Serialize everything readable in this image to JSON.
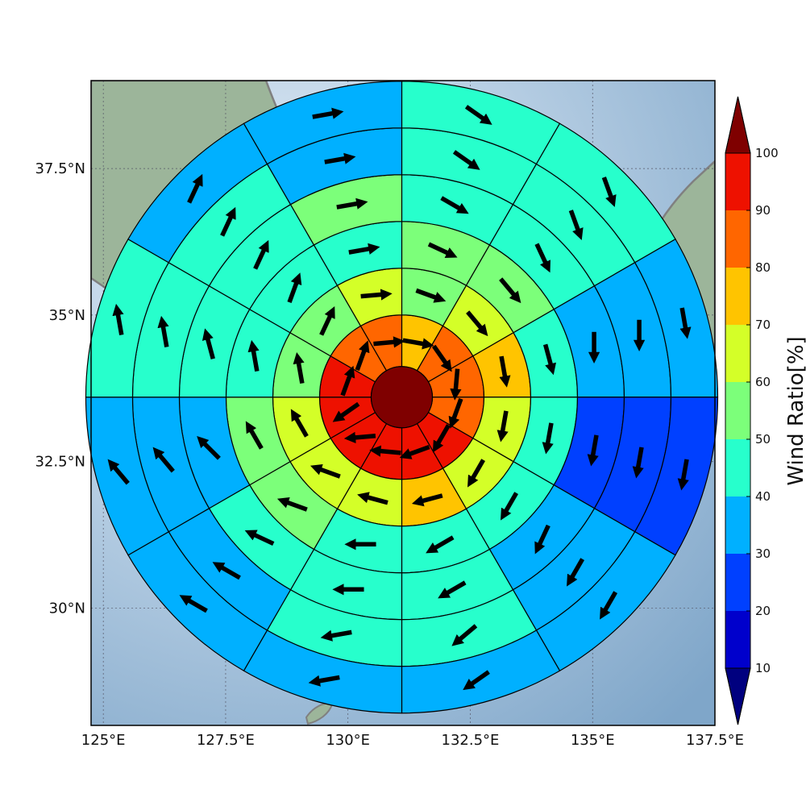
{
  "map": {
    "lon_range": [
      124.75,
      137.5
    ],
    "lat_range": [
      28.0,
      39.0
    ],
    "lon_ticks": [
      {
        "value": 125.0,
        "label": "125°E"
      },
      {
        "value": 127.5,
        "label": "127.5°E"
      },
      {
        "value": 130.0,
        "label": "130°E"
      },
      {
        "value": 132.5,
        "label": "132.5°E"
      },
      {
        "value": 135.0,
        "label": "135°E"
      },
      {
        "value": 137.5,
        "label": "137.5°E"
      }
    ],
    "lat_ticks": [
      {
        "value": 30.0,
        "label": "30°N"
      },
      {
        "value": 32.5,
        "label": "32.5°N"
      },
      {
        "value": 35.0,
        "label": "35°N"
      },
      {
        "value": 37.5,
        "label": "37.5°N"
      }
    ],
    "gridlines": true,
    "colors": {
      "sea": "#9fc0dc",
      "land": "#9cb59a",
      "coastline": "#808080"
    }
  },
  "colorbar": {
    "title": "Wind Ratio[%]",
    "boundaries": [
      10,
      20,
      30,
      40,
      50,
      60,
      70,
      80,
      90,
      100
    ],
    "colors": [
      "#0000cc",
      "#0040ff",
      "#00b0ff",
      "#27ffcc",
      "#7cff7a",
      "#d4ff28",
      "#ffc400",
      "#ff6600",
      "#ee1100"
    ],
    "under_color": "#00007f",
    "over_color": "#7f0000",
    "extend": "both"
  },
  "chart_data": {
    "type": "polar-sector-map",
    "center": {
      "lon": 131.1,
      "lat": 33.6
    },
    "ring_count": 6,
    "sectors_per_ring": 12,
    "center_value": 100,
    "rings": [
      {
        "values": [
          72,
          83,
          85,
          87,
          92,
          94,
          96,
          95,
          94,
          92,
          85,
          84
        ],
        "wind_dir_deg": [
          100,
          145,
          185,
          200,
          210,
          250,
          275,
          265,
          235,
          20,
          20,
          85
        ]
      },
      {
        "values": [
          58,
          65,
          72,
          60,
          63,
          72,
          64,
          60,
          68,
          58,
          58,
          64
        ],
        "wind_dir_deg": [
          110,
          140,
          170,
          190,
          210,
          255,
          285,
          290,
          330,
          350,
          25,
          85
        ]
      },
      {
        "values": [
          55,
          52,
          48,
          45,
          42,
          45,
          47,
          50,
          52,
          48,
          45,
          47
        ],
        "wind_dir_deg": [
          115,
          140,
          165,
          190,
          210,
          240,
          270,
          290,
          330,
          350,
          20,
          80
        ]
      },
      {
        "values": [
          48,
          45,
          38,
          26,
          38,
          43,
          45,
          40,
          37,
          45,
          48,
          50
        ],
        "wind_dir_deg": [
          120,
          155,
          180,
          190,
          205,
          240,
          270,
          295,
          315,
          345,
          25,
          80
        ]
      },
      {
        "values": [
          45,
          43,
          35,
          21,
          37,
          42,
          40,
          32,
          30,
          42,
          43,
          37
        ],
        "wind_dir_deg": [
          125,
          160,
          180,
          190,
          210,
          230,
          260,
          300,
          320,
          350,
          25,
          80
        ]
      },
      {
        "values": [
          45,
          42,
          38,
          25,
          35,
          37,
          35,
          33,
          35,
          42,
          33,
          35
        ],
        "wind_dir_deg": [
          125,
          160,
          170,
          190,
          210,
          235,
          260,
          300,
          320,
          350,
          25,
          80
        ]
      }
    ]
  }
}
